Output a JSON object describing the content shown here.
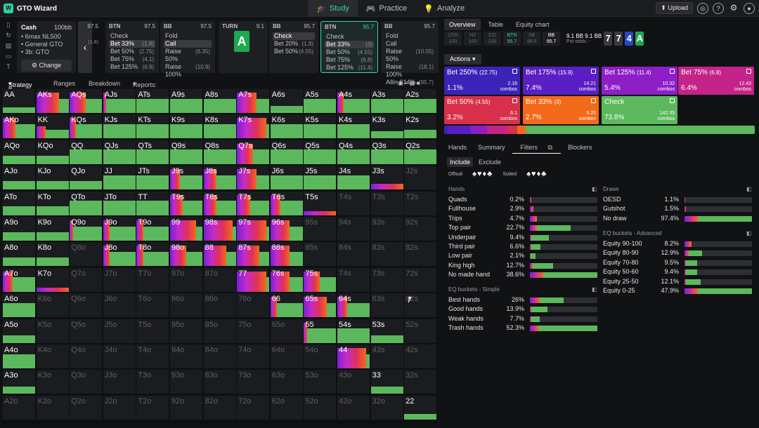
{
  "app": {
    "title": "GTO Wizard"
  },
  "nav": {
    "tabs": [
      {
        "label": "Study",
        "icon": "graduation-cap-icon"
      },
      {
        "label": "Practice",
        "icon": "gamepad-icon"
      },
      {
        "label": "Analyze",
        "icon": "lightbulb-icon"
      }
    ]
  },
  "toolbar": {
    "upload_label": "Upload"
  },
  "colors": {
    "accent": "#35d3a7",
    "fold": "#5cb85c",
    "bet_large": "#3b22b8",
    "bet_mid": "#7a1fd6",
    "bet_small": "#e0305a",
    "bet_33": "#f26a1a"
  },
  "info": {
    "title": "Cash",
    "stack": "100bb",
    "lines": [
      "• 6max NL500",
      "• General GTO",
      "• 3b: GTO"
    ],
    "change_label": "Change"
  },
  "nodes": [
    {
      "pos": "BTN",
      "stack": "97.5",
      "actions": [
        {
          "name": "Check",
          "size": ""
        },
        {
          "name": "Bet 33%",
          "size": "(1.8)",
          "sel": true
        },
        {
          "name": "Bet 50%",
          "size": "(2.75)"
        },
        {
          "name": "Bet 75%",
          "size": "(4.1)"
        },
        {
          "name": "Bet 125%",
          "size": "(6.9)"
        }
      ]
    },
    {
      "pos": "BB",
      "stack": "97.5",
      "actions": [
        {
          "name": "Fold",
          "size": ""
        },
        {
          "name": "Call",
          "size": "",
          "sel": true
        },
        {
          "name": "Raise 50%",
          "size": "(6.35)"
        },
        {
          "name": "Raise 100%",
          "size": "(10.9)"
        }
      ]
    },
    {
      "pos": "TURN",
      "stack": "9.1",
      "card": "A"
    },
    {
      "pos": "BB",
      "stack": "95.7",
      "actions": [
        {
          "name": "Check",
          "size": "",
          "sel": true
        },
        {
          "name": "Bet 20%",
          "size": "(1.8)"
        },
        {
          "name": "Bet 50%",
          "size": "(4.55)"
        }
      ]
    },
    {
      "pos": "BTN",
      "stack": "95.7",
      "actions": [
        {
          "name": "Check",
          "size": ""
        },
        {
          "name": "Bet 33%",
          "size": "(3)",
          "sel": true
        },
        {
          "name": "Bet 50%",
          "size": "(4.55)"
        },
        {
          "name": "Bet 75%",
          "size": "(6.8)"
        },
        {
          "name": "Bet 125%",
          "size": "(11.4)"
        }
      ]
    },
    {
      "pos": "BB",
      "stack": "95.7",
      "actions": [
        {
          "name": "Fold",
          "size": ""
        },
        {
          "name": "Call",
          "size": ""
        },
        {
          "name": "Raise 50%",
          "size": "(10.55)"
        },
        {
          "name": "Raise 100%",
          "size": "(18.1)"
        },
        {
          "name": "Allin 614%",
          "size": "(95.7)"
        }
      ]
    }
  ],
  "prev_node_stack": "97.5",
  "prev_node_bet": "(1.8)",
  "subtabs": [
    "Strategy",
    "Ranges",
    "Breakdown",
    "Reports: Turns"
  ],
  "grid_labels": [
    "AA",
    "AKs",
    "AQs",
    "AJs",
    "ATs",
    "A9s",
    "A8s",
    "A7s",
    "A6s",
    "A5s",
    "A4s",
    "A3s",
    "A2s",
    "AKo",
    "KK",
    "KQs",
    "KJs",
    "KTs",
    "K9s",
    "K8s",
    "K7s",
    "K6s",
    "K5s",
    "K4s",
    "K3s",
    "K2s",
    "AQo",
    "KQo",
    "QQ",
    "QJs",
    "QTs",
    "Q9s",
    "Q8s",
    "Q7s",
    "Q6s",
    "Q5s",
    "Q4s",
    "Q3s",
    "Q2s",
    "AJo",
    "KJo",
    "QJo",
    "JJ",
    "JTs",
    "J9s",
    "J8s",
    "J7s",
    "J6s",
    "J5s",
    "J4s",
    "J3s",
    "J2s",
    "ATo",
    "KTo",
    "QTo",
    "JTo",
    "TT",
    "T9s",
    "T8s",
    "T7s",
    "T6s",
    "T5s",
    "T4s",
    "T3s",
    "T2s",
    "A9o",
    "K9o",
    "Q9o",
    "J9o",
    "T9o",
    "99",
    "98s",
    "97s",
    "96s",
    "95s",
    "94s",
    "93s",
    "92s",
    "A8o",
    "K8o",
    "Q8o",
    "J8o",
    "T8o",
    "98o",
    "88",
    "87s",
    "86s",
    "85s",
    "84s",
    "83s",
    "82s",
    "A7o",
    "K7o",
    "Q7o",
    "J7o",
    "T7o",
    "97o",
    "87o",
    "77",
    "76s",
    "75s",
    "74s",
    "73s",
    "72s",
    "A6o",
    "K6o",
    "Q6o",
    "J6o",
    "T6o",
    "96o",
    "86o",
    "76o",
    "66",
    "65s",
    "64s",
    "63s",
    "62s",
    "A5o",
    "K5o",
    "Q5o",
    "J5o",
    "T5o",
    "95o",
    "85o",
    "75o",
    "65o",
    "55",
    "54s",
    "53s",
    "52s",
    "A4o",
    "K4o",
    "Q4o",
    "J4o",
    "T4o",
    "94o",
    "84o",
    "74o",
    "64o",
    "54o",
    "44",
    "43s",
    "42s",
    "A3o",
    "K3o",
    "Q3o",
    "J3o",
    "T3o",
    "93o",
    "83o",
    "73o",
    "63o",
    "53o",
    "43o",
    "33",
    "32s",
    "A2o",
    "K2o",
    "Q2o",
    "J2o",
    "T2o",
    "92o",
    "82o",
    "72o",
    "62o",
    "52o",
    "42o",
    "32o",
    "22"
  ],
  "grid_fill": [
    [
      0.4,
      1,
      1,
      1,
      1,
      1,
      1,
      1,
      0.5,
      1,
      1,
      1,
      1
    ],
    [
      1,
      0.6,
      1,
      1,
      1,
      1,
      1,
      1,
      1,
      1,
      1,
      0.5,
      0.6
    ],
    [
      0.6,
      0.6,
      1,
      1,
      1,
      1,
      1,
      1,
      1,
      1,
      1,
      1,
      1
    ],
    [
      0.6,
      0.6,
      0.6,
      1,
      1,
      1,
      1,
      1,
      1,
      1,
      1,
      0.3,
      0
    ],
    [
      0.6,
      0.6,
      1,
      1,
      1,
      1,
      1,
      1,
      1,
      0.2,
      0,
      0,
      0
    ],
    [
      0.6,
      0.6,
      1,
      1,
      1,
      1,
      1,
      1,
      1,
      0,
      0,
      0,
      0
    ],
    [
      0.6,
      0.6,
      0,
      1,
      1,
      1,
      1,
      1,
      1,
      0,
      0,
      0,
      0
    ],
    [
      1,
      0.2,
      0,
      0,
      0,
      0,
      0,
      1,
      1,
      1,
      0,
      0,
      0
    ],
    [
      1,
      0,
      0,
      0,
      0,
      0,
      0,
      0,
      1,
      1,
      1,
      0,
      0
    ],
    [
      0.5,
      0,
      0,
      0,
      0,
      0,
      0,
      0,
      0,
      1,
      1,
      0.5,
      0
    ],
    [
      1,
      0,
      0,
      0,
      0,
      0,
      0,
      0,
      0,
      0,
      1,
      0,
      0
    ],
    [
      0.5,
      0,
      0,
      0,
      0,
      0,
      0,
      0,
      0,
      0,
      0,
      0.5,
      0
    ],
    [
      0,
      0,
      0,
      0,
      0,
      0,
      0,
      0,
      0,
      0,
      0,
      0,
      0.4
    ]
  ],
  "grid_mix": [
    [
      0,
      0.7,
      0.5,
      0.1,
      0,
      0,
      0,
      0.6,
      0,
      0,
      0.2,
      0,
      0
    ],
    [
      0.4,
      0.3,
      0.2,
      0,
      0,
      0,
      0,
      0.9,
      0,
      0,
      0,
      0,
      0
    ],
    [
      0,
      0,
      0,
      0,
      0,
      0,
      0,
      0.5,
      0,
      0,
      0,
      0,
      0
    ],
    [
      0,
      0,
      0,
      0,
      0,
      0.3,
      0.4,
      0.6,
      0,
      0,
      0,
      1,
      0
    ],
    [
      0,
      0,
      0,
      0,
      0,
      0.4,
      0.4,
      0.4,
      0.3,
      1,
      0,
      0,
      0
    ],
    [
      0,
      0,
      0.1,
      0.2,
      0.2,
      0.8,
      0.9,
      0.9,
      0.6,
      0,
      0,
      0,
      0
    ],
    [
      0,
      0,
      0,
      0.2,
      0.2,
      0.5,
      0.7,
      0.7,
      0.6,
      0,
      0,
      0,
      0
    ],
    [
      0.3,
      1,
      0,
      0,
      0,
      0,
      0,
      0.9,
      0.6,
      0.5,
      0,
      0,
      0
    ],
    [
      0,
      0,
      0,
      0,
      0,
      0,
      0,
      0,
      0.2,
      0.7,
      0.3,
      0,
      0
    ],
    [
      0,
      0,
      0,
      0,
      0,
      0,
      0,
      0,
      0,
      0.1,
      0,
      0,
      0
    ],
    [
      0,
      0,
      0,
      0,
      0,
      0,
      0,
      0,
      0,
      0,
      0.9,
      0,
      0
    ],
    [
      0,
      0,
      0,
      0,
      0,
      0,
      0,
      0,
      0,
      0,
      0,
      0,
      0
    ],
    [
      0,
      0,
      0,
      0,
      0,
      0,
      0,
      0,
      0,
      0,
      0,
      0,
      0
    ]
  ],
  "right": {
    "tabs": [
      "Overview",
      "Table",
      "Equity chart"
    ],
    "players": [
      {
        "pos": "UTG",
        "stack": "100"
      },
      {
        "pos": "HJ",
        "stack": "100"
      },
      {
        "pos": "CO",
        "stack": "100"
      },
      {
        "pos": "BTN",
        "stack": "95.7"
      },
      {
        "pos": "SB",
        "stack": "99.5"
      },
      {
        "pos": "BB",
        "stack": "95.7"
      }
    ],
    "pot": "9.1 BB",
    "pot_small": "9.1 BB",
    "pot_odds_label": "Pot odds: -",
    "board": [
      {
        "c": "7",
        "col": "#3a3b40"
      },
      {
        "c": "7",
        "col": "#3a3b40"
      },
      {
        "c": "4",
        "col": "#2346c8"
      },
      {
        "c": "A",
        "col": "#1da94d"
      }
    ],
    "actions_label": "Actions",
    "action_boxes": [
      {
        "name": "Bet 250%",
        "size": "(22.75)",
        "pct": "1.1%",
        "combos": "2.16",
        "combos_lbl": "combos",
        "color": "#3b22b8"
      },
      {
        "name": "Bet 175%",
        "size": "(15.9)",
        "pct": "7.4%",
        "combos": "14.21",
        "combos_lbl": "combos",
        "color": "#5a1fc4"
      },
      {
        "name": "Bet 125%",
        "size": "(11.4)",
        "pct": "5.4%",
        "combos": "10.32",
        "combos_lbl": "combos",
        "color": "#8e1fc6"
      },
      {
        "name": "Bet 75%",
        "size": "(6.8)",
        "pct": "6.4%",
        "combos": "12.43",
        "combos_lbl": "combos",
        "color": "#c42489"
      },
      {
        "name": "Bet 50%",
        "size": "(4.55)",
        "pct": "3.2%",
        "combos": "6.1",
        "combos_lbl": "combos",
        "color": "#d8304a"
      },
      {
        "name": "Bet 33%",
        "size": "(3)",
        "pct": "2.7%",
        "combos": "5.25",
        "combos_lbl": "combos",
        "color": "#f26a1a"
      },
      {
        "name": "Check",
        "size": "",
        "pct": "73.8%",
        "combos": "142.35",
        "combos_lbl": "combos",
        "color": "#5cb85c"
      }
    ],
    "mix": [
      1.1,
      7.4,
      5.4,
      6.4,
      3.2,
      2.7,
      73.8
    ],
    "filter_tabs": [
      "Hands",
      "Summary",
      "Filters",
      "Blockers"
    ],
    "incl": [
      "Include",
      "Exclude"
    ],
    "offsuit_label": "Offsuit",
    "suited_label": "Suited",
    "hands_title": "Hands",
    "hands": [
      {
        "n": "Quads",
        "p": "0.2%",
        "g": 0,
        "s": 0.02
      },
      {
        "n": "Fullhouse",
        "p": "2.9%",
        "g": 0,
        "s": 0.05
      },
      {
        "n": "Trips",
        "p": "4.7%",
        "g": 0.02,
        "s": 0.1
      },
      {
        "n": "Top pair",
        "p": "22.7%",
        "g": 0.6,
        "s": 0.1
      },
      {
        "n": "Underpair",
        "p": "9.4%",
        "g": 0.28,
        "s": 0.02
      },
      {
        "n": "Third pair",
        "p": "6.6%",
        "g": 0.16,
        "s": 0.02
      },
      {
        "n": "Low pair",
        "p": "2.1%",
        "g": 0.08,
        "s": 0.01
      },
      {
        "n": "King high",
        "p": "12.7%",
        "g": 0.34,
        "s": 0.04
      },
      {
        "n": "No made hand",
        "p": "38.6%",
        "g": 1,
        "s": 0.2
      }
    ],
    "eq_simple_title": "EQ buckets - Simple",
    "eq_simple": [
      {
        "n": "Best hands",
        "p": "26%",
        "g": 0.5,
        "s": 0.15
      },
      {
        "n": "Good hands",
        "p": "13.9%",
        "g": 0.26,
        "s": 0.02
      },
      {
        "n": "Weak hands",
        "p": "7.7%",
        "g": 0.15,
        "s": 0.02
      },
      {
        "n": "Trash hands",
        "p": "52.3%",
        "g": 1,
        "s": 0.12
      }
    ],
    "draws_title": "Draws",
    "draws": [
      {
        "n": "OESD",
        "p": "1.1%",
        "g": 0,
        "s": 0.01
      },
      {
        "n": "Gutshot",
        "p": "1.5%",
        "g": 0,
        "s": 0.02
      },
      {
        "n": "No draw",
        "p": "97.4%",
        "g": 1,
        "s": 0.2
      }
    ],
    "eq_adv_title": "EQ buckets - Advanced",
    "eq_adv": [
      {
        "n": "Equity 90-100",
        "p": "8.2%",
        "g": 0.1,
        "s": 0.1
      },
      {
        "n": "Equity 80-90",
        "p": "12.9%",
        "g": 0.26,
        "s": 0.06
      },
      {
        "n": "Equity 70-80",
        "p": "9.5%",
        "g": 0.19,
        "s": 0.02
      },
      {
        "n": "Equity 50-60",
        "p": "9.4%",
        "g": 0.19,
        "s": 0.02
      },
      {
        "n": "Equity 25-50",
        "p": "12.1%",
        "g": 0.24,
        "s": 0.02
      },
      {
        "n": "Equity 0-25",
        "p": "47.9%",
        "g": 1,
        "s": 0.2
      }
    ]
  }
}
